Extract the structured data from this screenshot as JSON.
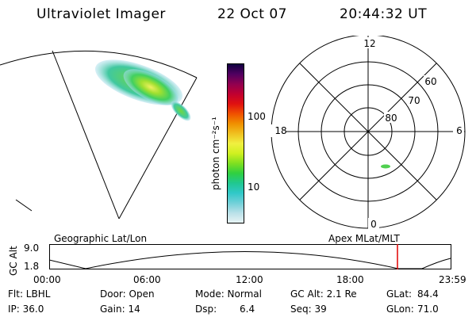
{
  "header": {
    "instrument": "Ultraviolet Imager",
    "date": "22 Oct 07",
    "time": "20:44:32 UT"
  },
  "colorbar": {
    "label": "photon cm⁻²s⁻¹",
    "ticks": [
      "100",
      "10"
    ],
    "colors": [
      "#e8f4f4",
      "#b8e0e8",
      "#70d0d8",
      "#30c8c8",
      "#20c890",
      "#30d040",
      "#80e020",
      "#d0f020",
      "#f0f040",
      "#f0c020",
      "#f09000",
      "#f05000",
      "#e01010",
      "#c00030",
      "#900050",
      "#500060",
      "#100040"
    ]
  },
  "polar_plot": {
    "mlt_labels": {
      "top": "12",
      "right": "6",
      "bottom": "0",
      "left": "18"
    },
    "lat_labels": [
      "60",
      "70",
      "80"
    ]
  },
  "timeline": {
    "left_title": "Geographic Lat/Lon",
    "right_title": "Apex MLat/MLT",
    "y_label": "GC Alt",
    "y_ticks": [
      "9.0",
      "1.8"
    ],
    "x_ticks": [
      "00:00",
      "06:00",
      "12:00",
      "18:00",
      "23:59"
    ],
    "marker_color": "#e00000"
  },
  "footer": {
    "filter": "Flt: LBHL",
    "ip": "IP: 36.0",
    "door": "Door: Open",
    "gain": "Gain: 14",
    "mode": "Mode: Normal",
    "dsp_label": "Dsp:",
    "dsp_value": "6.4",
    "gc_alt": "GC Alt: 2.1 Re",
    "seq": "Seq: 39",
    "glat_label": "GLat:",
    "glat_value": "84.4",
    "glon_label": "GLon:",
    "glon_value": "71.0"
  }
}
